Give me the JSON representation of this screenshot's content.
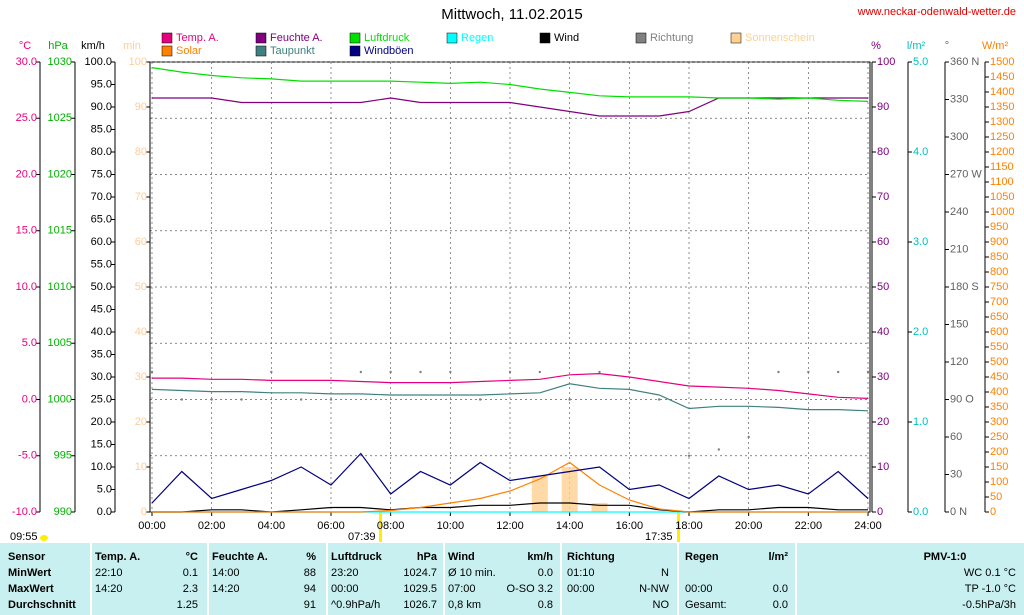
{
  "chart_data": {
    "type": "line",
    "title": "Mittwoch, 11.02.2015",
    "source_url": "www.neckar-odenwald-wetter.de",
    "annotations": {
      "update_time": "09:55",
      "sunrise": "07:39",
      "sunset": "17:35"
    },
    "grid": true,
    "xlim": [
      0,
      24
    ],
    "xticks": [
      {
        "value": 0,
        "label": "00:00"
      },
      {
        "value": 2,
        "label": "02:00"
      },
      {
        "value": 4,
        "label": "04:00"
      },
      {
        "value": 6,
        "label": "06:00"
      },
      {
        "value": 8,
        "label": "08:00"
      },
      {
        "value": 10,
        "label": "10:00"
      },
      {
        "value": 12,
        "label": "12:00"
      },
      {
        "value": 14,
        "label": "14:00"
      },
      {
        "value": 16,
        "label": "16:00"
      },
      {
        "value": 18,
        "label": "18:00"
      },
      {
        "value": 20,
        "label": "20:00"
      },
      {
        "value": 22,
        "label": "22:00"
      },
      {
        "value": 24,
        "label": "24:00"
      }
    ],
    "axes": {
      "y_temp": {
        "title": "°C",
        "color": "#e6007e",
        "lim": [
          -10,
          30
        ],
        "ticks": [
          {
            "value": -10,
            "label": "-10.0"
          },
          {
            "value": -5,
            "label": "-5.0"
          },
          {
            "value": 0,
            "label": "0.0"
          },
          {
            "value": 5,
            "label": "5.0"
          },
          {
            "value": 10,
            "label": "10.0"
          },
          {
            "value": 15,
            "label": "15.0"
          },
          {
            "value": 20,
            "label": "20.0"
          },
          {
            "value": 25,
            "label": "25.0"
          },
          {
            "value": 30,
            "label": "30.0"
          }
        ]
      },
      "y_hpa": {
        "title": "hPa",
        "color": "#00b000",
        "lim": [
          990,
          1030
        ],
        "ticks": [
          990,
          995,
          1000,
          1005,
          1010,
          1015,
          1020,
          1025,
          1030
        ]
      },
      "y_kmh": {
        "title": "km/h",
        "color": "#000000",
        "lim": [
          0,
          100
        ],
        "ticks": [
          {
            "value": 0,
            "label": "0.0"
          },
          {
            "value": 5,
            "label": "5.0"
          },
          {
            "value": 10,
            "label": "10.0"
          },
          {
            "value": 15,
            "label": "15.0"
          },
          {
            "value": 20,
            "label": "20.0"
          },
          {
            "value": 25,
            "label": "25.0"
          },
          {
            "value": 30,
            "label": "30.0"
          },
          {
            "value": 35,
            "label": "35.0"
          },
          {
            "value": 40,
            "label": "40.0"
          },
          {
            "value": 45,
            "label": "45.0"
          },
          {
            "value": 50,
            "label": "50.0"
          },
          {
            "value": 55,
            "label": "55.0"
          },
          {
            "value": 60,
            "label": "60.0"
          },
          {
            "value": 65,
            "label": "65.0"
          },
          {
            "value": 70,
            "label": "70.0"
          },
          {
            "value": 75,
            "label": "75.0"
          },
          {
            "value": 80,
            "label": "80.0"
          },
          {
            "value": 85,
            "label": "85.0"
          },
          {
            "value": 90,
            "label": "90.0"
          },
          {
            "value": 95,
            "label": "95.0"
          },
          {
            "value": 100,
            "label": "100.0"
          }
        ]
      },
      "y_min": {
        "title": "min",
        "color": "#ffcc99",
        "lim": [
          0,
          100
        ],
        "ticks": [
          0,
          10,
          20,
          30,
          40,
          50,
          60,
          70,
          80,
          90,
          100
        ]
      },
      "y_pct": {
        "title": "%",
        "color": "#800080",
        "lim": [
          0,
          100
        ],
        "ticks": [
          0,
          10,
          20,
          30,
          40,
          50,
          60,
          70,
          80,
          90,
          100
        ]
      },
      "y_rain": {
        "title": "l/m²",
        "color": "#00c0c0",
        "lim": [
          0,
          5
        ],
        "ticks": [
          {
            "value": 0,
            "label": "0.0"
          },
          {
            "value": 1,
            "label": "1.0"
          },
          {
            "value": 2,
            "label": "2.0"
          },
          {
            "value": 3,
            "label": "3.0"
          },
          {
            "value": 4,
            "label": "4.0"
          },
          {
            "value": 5,
            "label": "5.0"
          }
        ]
      },
      "y_dir": {
        "title": "°",
        "color": "#606060",
        "lim": [
          0,
          360
        ],
        "ticks": [
          {
            "value": 0,
            "label": "0 N"
          },
          30,
          60,
          {
            "value": 90,
            "label": "90 O"
          },
          120,
          150,
          {
            "value": 180,
            "label": "180 S"
          },
          210,
          240,
          {
            "value": 270,
            "label": "270 W"
          },
          300,
          330,
          {
            "value": 360,
            "label": "360 N"
          }
        ]
      },
      "y_solar": {
        "title": "W/m²",
        "color": "#ff8000",
        "lim": [
          0,
          1500
        ],
        "ticks": [
          0,
          50,
          100,
          150,
          200,
          250,
          300,
          350,
          400,
          450,
          500,
          550,
          600,
          650,
          700,
          750,
          800,
          850,
          900,
          950,
          1000,
          1050,
          1100,
          1150,
          1200,
          1250,
          1300,
          1350,
          1400,
          1450,
          1500
        ]
      }
    },
    "x": [
      0,
      1,
      2,
      3,
      4,
      5,
      6,
      7,
      8,
      9,
      10,
      11,
      12,
      13,
      14,
      15,
      16,
      17,
      18,
      19,
      20,
      21,
      22,
      23,
      24
    ],
    "series": [
      {
        "name": "Temp. A.",
        "color": "#e6007e",
        "type": "line",
        "axis": "y_temp",
        "values": [
          1.9,
          1.9,
          1.8,
          1.8,
          1.7,
          1.7,
          1.7,
          1.6,
          1.5,
          1.5,
          1.5,
          1.6,
          1.7,
          1.8,
          2.2,
          2.3,
          2.0,
          1.6,
          1.2,
          1.1,
          1.0,
          0.8,
          0.5,
          0.2,
          0.1
        ]
      },
      {
        "name": "Feuchte A.",
        "color": "#800080",
        "type": "line",
        "axis": "y_pct",
        "values": [
          92,
          92,
          92,
          91,
          91,
          91,
          91,
          91,
          92,
          91,
          91,
          91,
          91,
          90,
          89,
          88,
          88,
          88,
          89,
          92,
          92,
          92,
          92,
          92,
          92
        ]
      },
      {
        "name": "Luftdruck",
        "color": "#00e000",
        "type": "line",
        "axis": "y_hpa",
        "values": [
          1029.5,
          1029.1,
          1028.8,
          1028.6,
          1028.5,
          1028.3,
          1028.3,
          1028.3,
          1028.3,
          1028.2,
          1028.1,
          1028.2,
          1028.0,
          1027.6,
          1027.3,
          1027.0,
          1026.9,
          1026.9,
          1026.9,
          1026.8,
          1026.8,
          1026.7,
          1026.8,
          1026.6,
          1026.5
        ]
      },
      {
        "name": "Regen",
        "color": "#00ffff",
        "type": "line",
        "axis": "y_rain",
        "values": [
          0,
          0,
          0,
          0,
          0,
          0,
          0,
          0,
          0,
          0,
          0,
          0,
          0,
          0,
          0,
          0,
          0,
          0,
          0,
          0,
          0,
          0,
          0,
          0,
          0
        ]
      },
      {
        "name": "Wind",
        "color": "#000000",
        "type": "line",
        "axis": "y_kmh",
        "values": [
          0,
          0,
          0.5,
          0.5,
          0,
          0.5,
          1,
          1,
          0.5,
          1,
          1,
          1.5,
          1.5,
          2,
          2,
          1.5,
          1.5,
          0.5,
          0,
          0.5,
          0.5,
          1,
          1,
          0.5,
          0.5
        ]
      },
      {
        "name": "Richtung",
        "color": "#808080",
        "type": "scatter",
        "axis": "y_dir",
        "values": [
          112,
          90,
          90,
          90,
          112,
          90,
          90,
          112,
          112,
          112,
          112,
          90,
          112,
          112,
          90,
          112,
          112,
          90,
          45,
          50,
          60,
          112,
          112,
          112,
          112
        ]
      },
      {
        "name": "Sonnenschein",
        "color": "#ffd090",
        "type": "bar",
        "axis": "y_min",
        "values": [
          0,
          0,
          0,
          0,
          0,
          0,
          0,
          0,
          0,
          0,
          0,
          0,
          0,
          8,
          10,
          2,
          0,
          0,
          0,
          0,
          0,
          0,
          0,
          0,
          0
        ]
      },
      {
        "name": "Solar",
        "color": "#ff8000",
        "type": "line",
        "axis": "y_solar",
        "values": [
          0,
          0,
          0,
          0,
          0,
          0,
          0,
          0,
          5,
          15,
          30,
          45,
          70,
          110,
          165,
          90,
          40,
          10,
          0,
          0,
          0,
          0,
          0,
          0,
          0
        ]
      },
      {
        "name": "Taupunkt",
        "color": "#408080",
        "type": "line",
        "axis": "y_temp",
        "values": [
          0.9,
          0.8,
          0.7,
          0.7,
          0.6,
          0.6,
          0.5,
          0.5,
          0.4,
          0.4,
          0.4,
          0.4,
          0.5,
          0.6,
          1.4,
          1.0,
          0.9,
          0.4,
          -0.8,
          -0.6,
          -0.6,
          -0.7,
          -0.9,
          -0.9,
          -1.0
        ]
      },
      {
        "name": "Windböen",
        "color": "#000080",
        "type": "line",
        "axis": "y_kmh",
        "values": [
          2,
          9,
          3,
          5,
          7,
          10,
          6,
          13,
          4,
          9,
          6,
          11,
          7,
          8,
          9,
          10,
          5,
          6,
          3,
          8,
          5,
          6,
          4,
          9,
          3
        ]
      }
    ]
  },
  "table": {
    "header": [
      "Sensor",
      "Temp. A.",
      "°C",
      "Feuchte A.",
      "%",
      "Luftdruck",
      "hPa",
      "Wind",
      "km/h",
      "Richtung",
      null,
      "Regen",
      "l/m²",
      "PMV-1:0"
    ],
    "rows": [
      [
        "MinWert",
        "22:10",
        "0.1",
        "14:00",
        "88",
        "23:20",
        "1024.7",
        "Ø 10 min.",
        "0.0",
        "01:10",
        "N",
        null,
        null,
        "WC 0.1 °C"
      ],
      [
        "MaxWert",
        "14:20",
        "2.3",
        "14:20",
        "94",
        "00:00",
        "1029.5",
        "07:00",
        "O-SO 3.2",
        "00:00",
        "N-NW",
        "00:00",
        "0.0",
        "TP -1.0 °C"
      ],
      [
        "Durchschnitt",
        null,
        "1.25",
        null,
        "91",
        "^0.9hPa/h",
        "1026.7",
        "0,8 km",
        "0.8",
        null,
        "NO",
        "Gesamt:",
        "0.0",
        "-0.5hPa/3h"
      ]
    ]
  }
}
